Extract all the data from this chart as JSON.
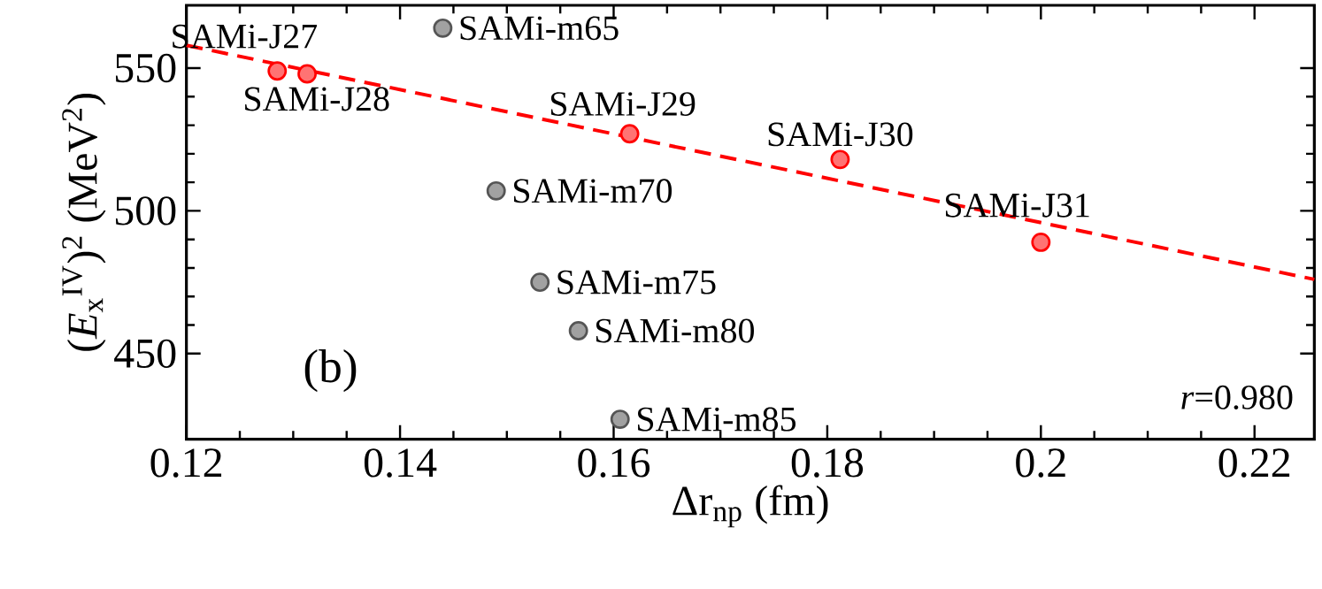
{
  "chart_data": {
    "type": "scatter",
    "xlabel": "Δr$_{np}$ (fm)",
    "ylabel": "(*E*$_{x}$$^{IV}$)$^{2}$ (MeV$^{2}$)",
    "xlim": [
      0.12,
      0.2256
    ],
    "ylim": [
      420,
      572
    ],
    "xticks": [
      0.12,
      0.14,
      0.16,
      {
        "value": 0.18,
        "label": "0.18"
      },
      {
        "value": 0.2,
        "label": "0.2"
      },
      0.22
    ],
    "yticks": [
      450,
      500,
      550
    ],
    "grid": false,
    "marker": "circle",
    "series": [
      {
        "color": "#ff0000",
        "x": [
          0.1285,
          0.1313,
          0.1615,
          0.1812,
          0.2
        ],
        "values": [
          549,
          548,
          527,
          518,
          489
        ]
      },
      {
        "color": "#555555",
        "x": [
          0.144,
          0.149,
          0.1531,
          0.1567,
          0.1606
        ],
        "values": [
          564,
          507,
          475,
          458,
          427
        ]
      },
      {
        "type": "line",
        "color": "#ff0000",
        "line_style": "dashed",
        "marker": "none",
        "x": [
          0.12,
          0.2256
        ],
        "values": [
          558,
          476
        ]
      }
    ],
    "annotations": [
      {
        "text": "SAMi-J27",
        "x": 0.1285,
        "y": 549
      },
      {
        "text": "SAMi-J28",
        "x": 0.1313,
        "y": 548
      },
      {
        "text": "SAMi-J29",
        "x": 0.1615,
        "y": 527
      },
      {
        "text": "SAMi-J30",
        "x": 0.1812,
        "y": 518
      },
      {
        "text": "SAMi-J31",
        "x": 0.2,
        "y": 489
      },
      {
        "text": "SAMi-m65",
        "x": 0.144,
        "y": 564
      },
      {
        "text": "SAMi-m70",
        "x": 0.149,
        "y": 507
      },
      {
        "text": "SAMi-m75",
        "x": 0.1531,
        "y": 475
      },
      {
        "text": "SAMi-m80",
        "x": 0.1567,
        "y": 458
      },
      {
        "text": "SAMi-m85",
        "x": 0.1606,
        "y": 427
      },
      "(b)",
      "*r*=0.980"
    ]
  }
}
